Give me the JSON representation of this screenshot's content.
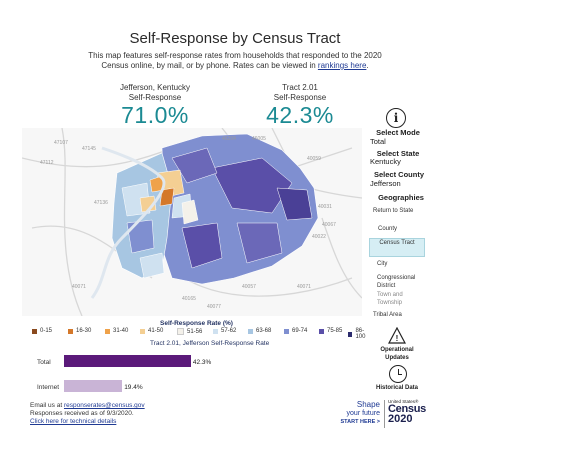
{
  "title": "Self-Response by Census Tract",
  "intro": {
    "line1": "This map features self-response rates from households that responded to the 2020",
    "line2": "Census online, by mail, or by phone. Rates can be viewed in ",
    "link": "rankings here",
    "end": "."
  },
  "stats": [
    {
      "label1": "Jefferson, Kentucky",
      "label2": "Self-Response",
      "value": "71.0%"
    },
    {
      "label1": "Tract 2.01",
      "label2": "Self-Response",
      "value": "42.3%"
    }
  ],
  "sidebar": {
    "info_icon": "info-icon",
    "select_mode_label": "Select Mode",
    "select_mode_value": "Total",
    "select_state_label": "Select State",
    "select_state_value": "Kentucky",
    "select_county_label": "Select County",
    "select_county_value": "Jefferson",
    "geographies_label": "Geographies",
    "geographies": [
      "Return to State",
      "County",
      "Census Tract",
      "City",
      "Congressional District",
      "Town and Township",
      "Tribal Area"
    ],
    "active_geography": "Census Tract",
    "operational_updates": "Operational Updates",
    "historical_data": "Historical Data"
  },
  "legend": {
    "title": "Self-Response Rate (%)",
    "items": [
      {
        "label": "0-15",
        "color": "#8a4a1e"
      },
      {
        "label": "16-30",
        "color": "#d4782a"
      },
      {
        "label": "31-40",
        "color": "#efa24a"
      },
      {
        "label": "41-50",
        "color": "#f4cf93"
      },
      {
        "label": "51-56",
        "color": "#f4f1ea"
      },
      {
        "label": "57-62",
        "color": "#cfe1f0"
      },
      {
        "label": "63-68",
        "color": "#a7c6e2"
      },
      {
        "label": "69-74",
        "color": "#7f8fd0"
      },
      {
        "label": "75-85",
        "color": "#5a4fa8"
      },
      {
        "label": "86-100",
        "color": "#2c2c6e"
      }
    ]
  },
  "bars": {
    "title": "Tract 2.01, Jefferson Self-Response Rate",
    "items": [
      {
        "label": "Total",
        "value": 42.3,
        "display": "42.3%",
        "color": "#5b1a7a"
      },
      {
        "label": "Internet",
        "value": 19.4,
        "display": "19.4%",
        "color": "#c9b4d6"
      }
    ]
  },
  "footer": {
    "email_prefix": "Email us at ",
    "email": "responserates@census.gov",
    "received": "Responses received as of 9/3/2020.",
    "details_link": "Click here for technical details"
  },
  "brand": {
    "shape1": "Shape",
    "shape2": "your future",
    "start": "START HERE >",
    "small": "United States®",
    "census": "Census",
    "year": "2020"
  },
  "map_labels": [
    "47107",
    "47145",
    "47112",
    "46204",
    "46005",
    "40059",
    "40031",
    "40067",
    "40022",
    "40057",
    "40071",
    "40165",
    "47136",
    "40077",
    "40071"
  ],
  "colors": {
    "accent": "#1b8a93",
    "link": "#1f3a93",
    "bar_total": "#5b1a7a",
    "bar_internet": "#c9b4d6"
  }
}
